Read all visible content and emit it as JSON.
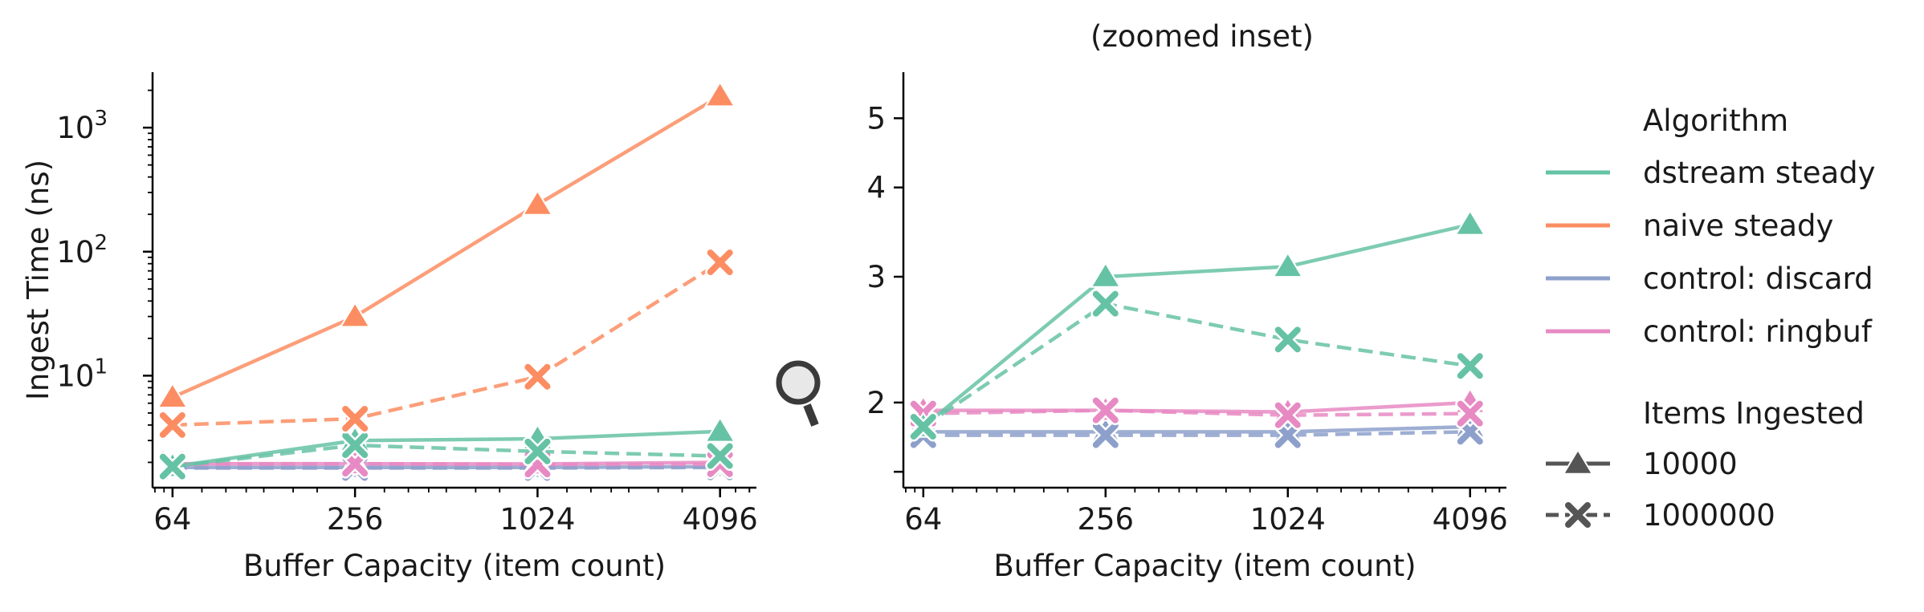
{
  "colors": {
    "dstream steady": "#66c2a5",
    "naive steady": "#fc8d62",
    "control: discard": "#8da0cb",
    "control: ringbuf": "#e78ac3",
    "style_marker": "#555555"
  },
  "legend": {
    "hue_title": "Algorithm",
    "hue_entries": [
      "dstream steady",
      "naive steady",
      "control: discard",
      "control: ringbuf"
    ],
    "style_title": "Items Ingested",
    "style_entries": [
      {
        "label": "10000",
        "marker": "triangle",
        "dash": "solid"
      },
      {
        "label": "1000000",
        "marker": "x",
        "dash": "dashed"
      }
    ],
    "placement": "right"
  },
  "magnifier_icon": "magnifying-glass-icon",
  "chart_data": [
    {
      "type": "line",
      "title": "",
      "xlabel": "Buffer Capacity (item count)",
      "ylabel": "Ingest Time (ns)",
      "xscale": "log2",
      "yscale": "log10",
      "xlim": [
        55,
        5400
      ],
      "ylim": [
        1.25,
        2800
      ],
      "x": [
        64,
        256,
        1024,
        4096
      ],
      "xticks": [
        "64",
        "256",
        "1024",
        "4096"
      ],
      "yticks": [
        {
          "value": 10,
          "base": "10",
          "exp": "1"
        },
        {
          "value": 100,
          "base": "10",
          "exp": "2"
        },
        {
          "value": 1000,
          "base": "10",
          "exp": "3"
        }
      ],
      "grid": false,
      "series": [
        {
          "algorithm": "control: discard",
          "items": "10000",
          "values": [
            1.82,
            1.82,
            1.82,
            1.85
          ]
        },
        {
          "algorithm": "control: discard",
          "items": "1000000",
          "values": [
            1.8,
            1.8,
            1.8,
            1.82
          ]
        },
        {
          "algorithm": "control: ringbuf",
          "items": "10000",
          "values": [
            1.95,
            1.95,
            1.94,
            2.0
          ]
        },
        {
          "algorithm": "control: ringbuf",
          "items": "1000000",
          "values": [
            1.93,
            1.95,
            1.92,
            1.93
          ]
        },
        {
          "algorithm": "dstream steady",
          "items": "10000",
          "values": [
            1.85,
            3.0,
            3.1,
            3.55
          ]
        },
        {
          "algorithm": "dstream steady",
          "items": "1000000",
          "values": [
            1.85,
            2.75,
            2.45,
            2.25
          ]
        },
        {
          "algorithm": "naive steady",
          "items": "10000",
          "values": [
            6.7,
            30,
            240,
            1800
          ]
        },
        {
          "algorithm": "naive steady",
          "items": "1000000",
          "values": [
            4.0,
            4.5,
            9.8,
            82
          ]
        }
      ]
    },
    {
      "type": "line",
      "title": "(zoomed inset)",
      "xlabel": "Buffer Capacity (item count)",
      "ylabel": "",
      "xscale": "log2",
      "yscale": "log",
      "xlim": [
        55,
        5400
      ],
      "ylim": [
        1.52,
        5.8
      ],
      "x": [
        64,
        256,
        1024,
        4096
      ],
      "xticks": [
        "64",
        "256",
        "1024",
        "4096"
      ],
      "yticks": [
        {
          "value": 2,
          "label": "2"
        },
        {
          "value": 3,
          "label": "3"
        },
        {
          "value": 4,
          "label": "4"
        },
        {
          "value": 5,
          "label": "5"
        },
        {
          "value": 1.6,
          "label": ""
        }
      ],
      "grid": false,
      "series": [
        {
          "algorithm": "control: discard",
          "items": "10000",
          "values": [
            1.82,
            1.82,
            1.82,
            1.85
          ]
        },
        {
          "algorithm": "control: discard",
          "items": "1000000",
          "values": [
            1.8,
            1.8,
            1.8,
            1.82
          ]
        },
        {
          "algorithm": "control: ringbuf",
          "items": "10000",
          "values": [
            1.95,
            1.95,
            1.94,
            2.0
          ]
        },
        {
          "algorithm": "control: ringbuf",
          "items": "1000000",
          "values": [
            1.93,
            1.95,
            1.92,
            1.93
          ]
        },
        {
          "algorithm": "dstream steady",
          "items": "10000",
          "values": [
            1.85,
            3.0,
            3.1,
            3.55
          ]
        },
        {
          "algorithm": "dstream steady",
          "items": "1000000",
          "values": [
            1.85,
            2.75,
            2.45,
            2.25
          ]
        }
      ]
    }
  ]
}
